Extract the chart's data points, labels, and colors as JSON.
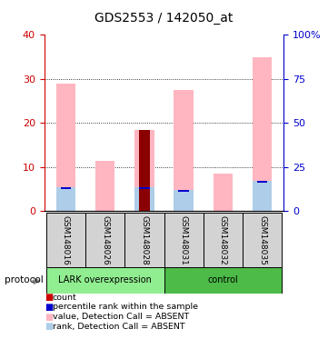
{
  "title": "GDS2553 / 142050_at",
  "samples": [
    "GSM148016",
    "GSM148026",
    "GSM148028",
    "GSM148031",
    "GSM148032",
    "GSM148035"
  ],
  "pink_values": [
    29.0,
    11.5,
    18.5,
    27.5,
    8.5,
    35.0
  ],
  "blue_rank_values": [
    13.5,
    0.0,
    13.5,
    12.0,
    0.0,
    17.0
  ],
  "dark_red_count": [
    0,
    0,
    18.5,
    0,
    0,
    0
  ],
  "blue_percentile": [
    13.5,
    0.0,
    13.5,
    12.0,
    0.0,
    17.0
  ],
  "ylim_left": [
    0,
    40
  ],
  "ylim_right": [
    0,
    100
  ],
  "yticks_left": [
    0,
    10,
    20,
    30,
    40
  ],
  "yticks_right": [
    0,
    25,
    50,
    75,
    100
  ],
  "ytick_labels_right": [
    "0",
    "25",
    "50",
    "75",
    "100%"
  ],
  "left_color": "#CC0000",
  "right_color": "#0000CC",
  "pink_color": "#FFB6C1",
  "light_blue_color": "#AECDE8",
  "dark_red_color": "#8B0000",
  "blue_color": "#0000CC",
  "protocol_label": "protocol",
  "lark_label": "LARK overexpression",
  "control_label": "control",
  "lark_color": "#90EE90",
  "control_color": "#4CBB47",
  "legend_items": [
    {
      "label": "count",
      "color": "#CC0000"
    },
    {
      "label": "percentile rank within the sample",
      "color": "#0000CC"
    },
    {
      "label": "value, Detection Call = ABSENT",
      "color": "#FFB6C1"
    },
    {
      "label": "rank, Detection Call = ABSENT",
      "color": "#AECDE8"
    }
  ],
  "fig_width": 3.61,
  "fig_height": 3.84,
  "dpi": 100
}
